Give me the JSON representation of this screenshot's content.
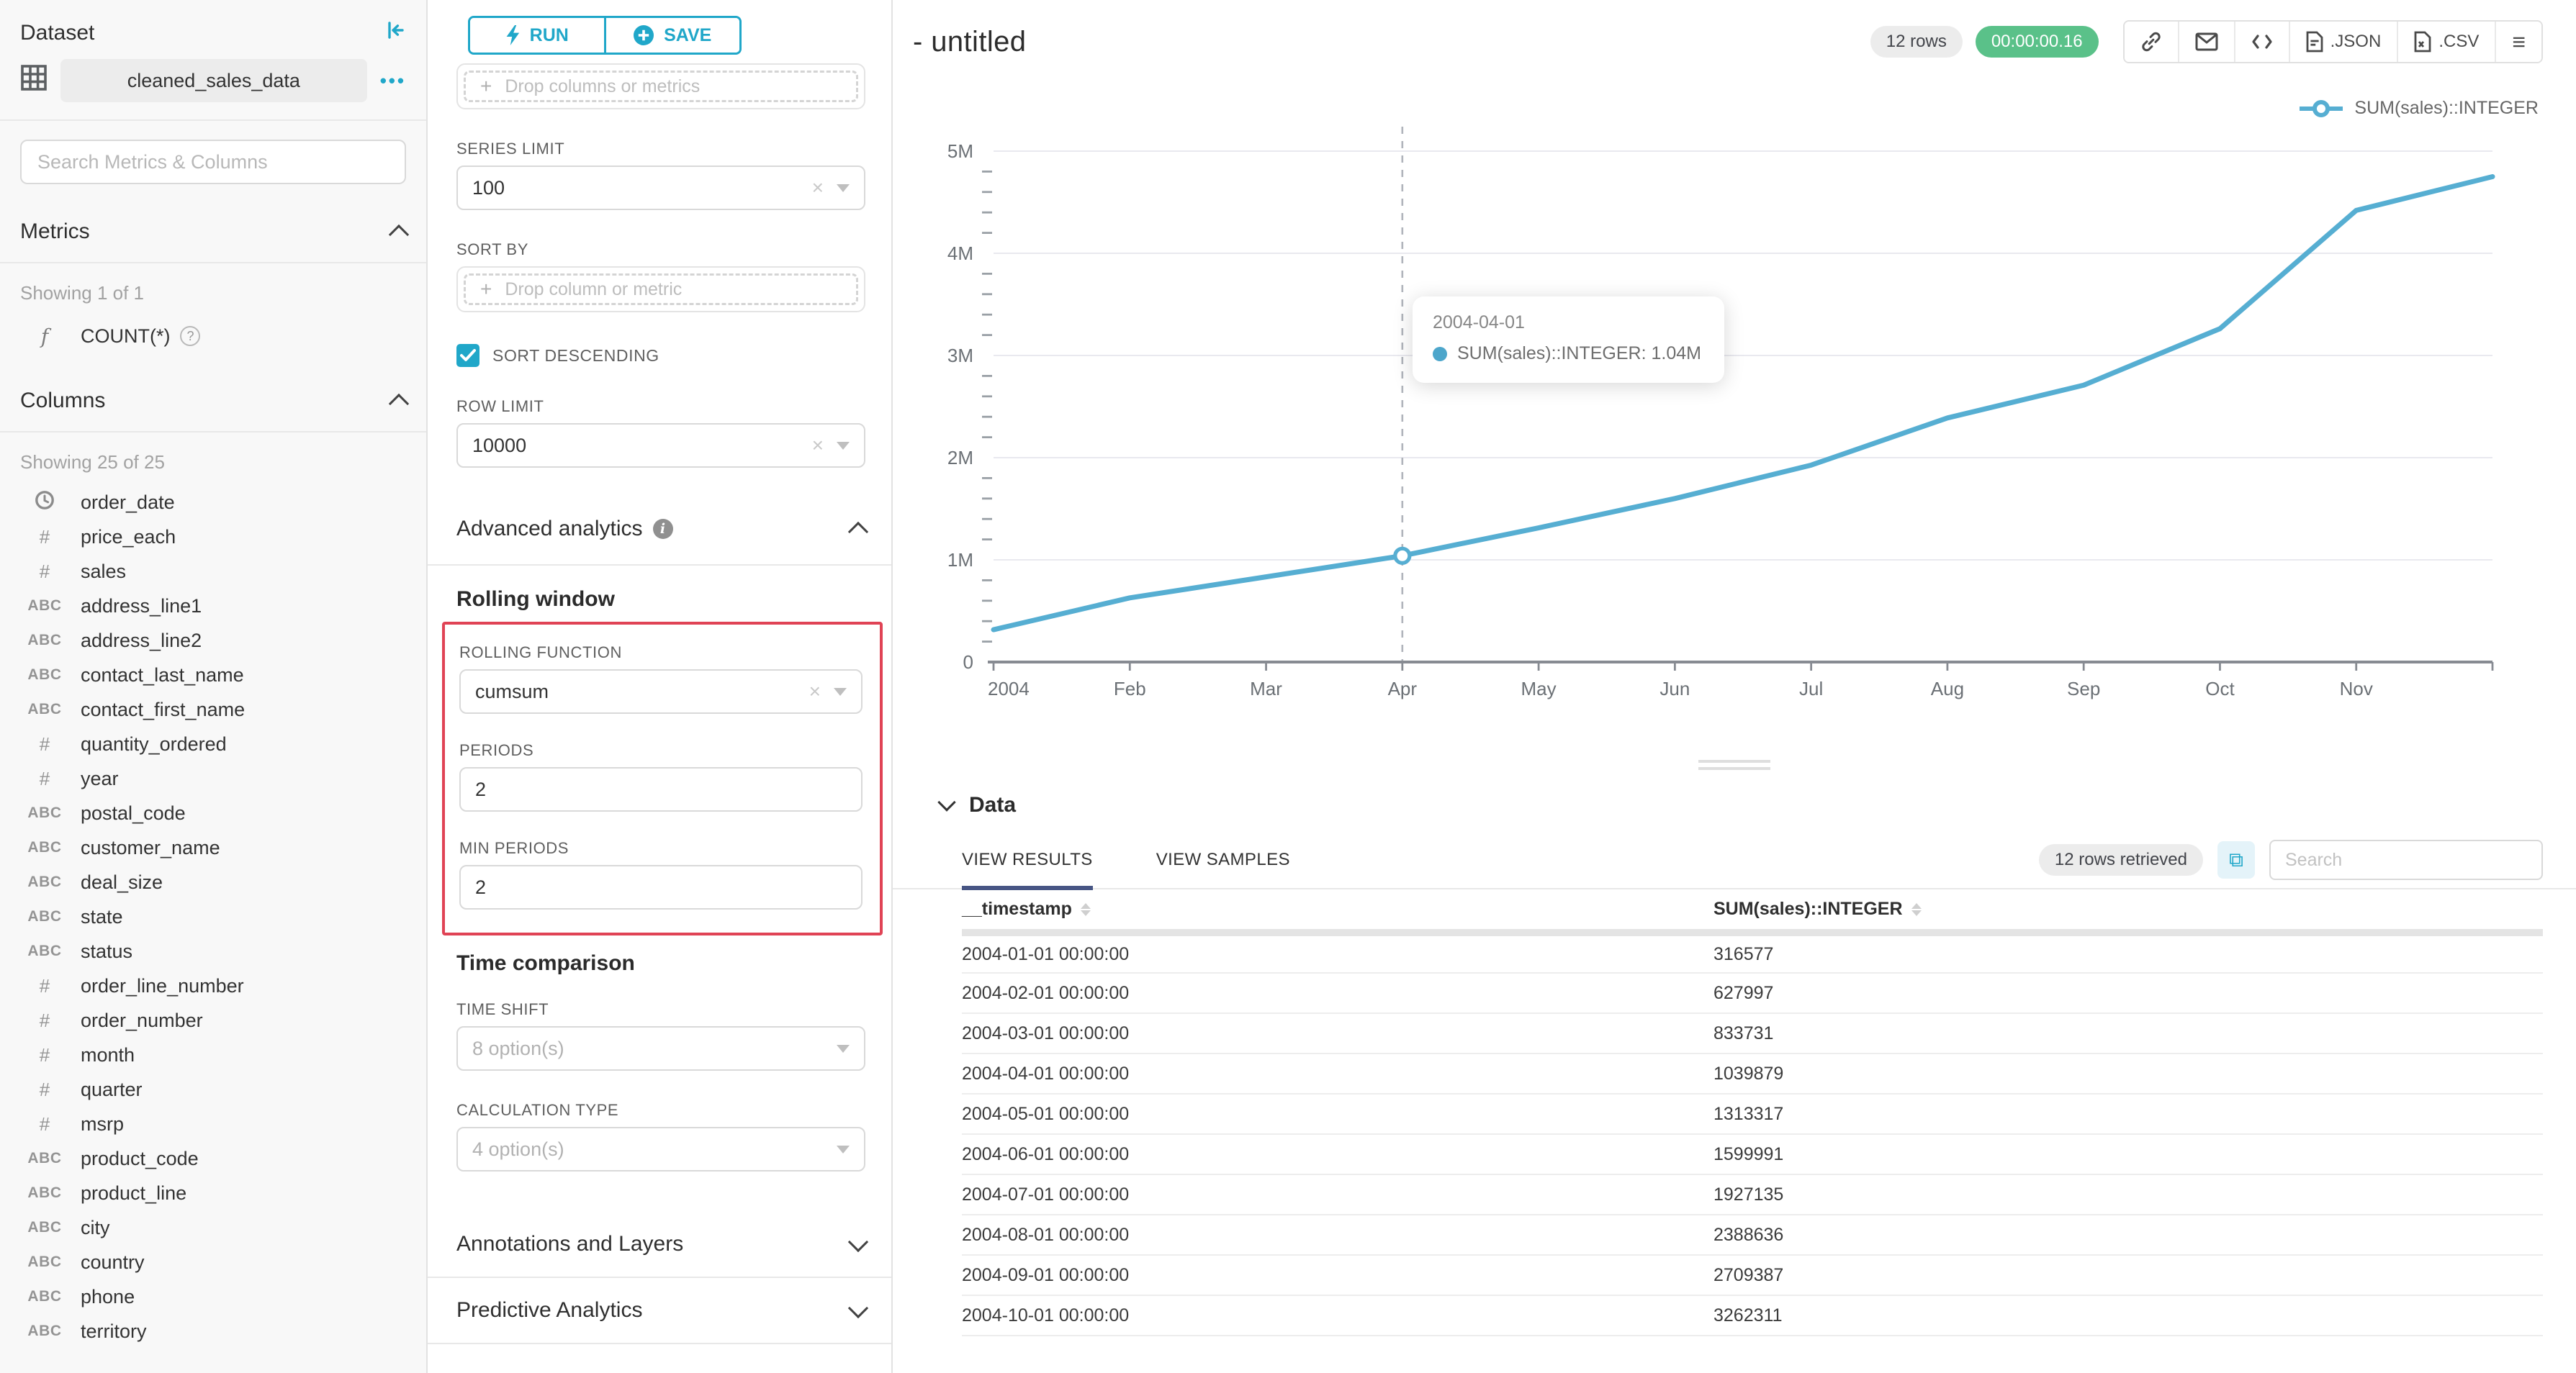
{
  "colors": {
    "primary": "#20a7c9",
    "line": "#56aed2",
    "tooltip_dot": "#4da6cb",
    "timer_badge_bg": "#5ac189",
    "alert_outline": "#e04355",
    "active_tab_underline": "#475584"
  },
  "dataset_panel": {
    "title": "Dataset",
    "dataset_name": "cleaned_sales_data",
    "search_placeholder": "Search Metrics & Columns",
    "metrics_section": {
      "title": "Metrics",
      "showing": "Showing 1 of 1",
      "items": [
        {
          "type": "function",
          "label": "COUNT(*)"
        }
      ]
    },
    "columns_section": {
      "title": "Columns",
      "showing": "Showing 25 of 25",
      "items": [
        {
          "type": "temporal",
          "label": "order_date"
        },
        {
          "type": "numeric",
          "label": "price_each"
        },
        {
          "type": "numeric",
          "label": "sales"
        },
        {
          "type": "text",
          "label": "address_line1"
        },
        {
          "type": "text",
          "label": "address_line2"
        },
        {
          "type": "text",
          "label": "contact_last_name"
        },
        {
          "type": "text",
          "label": "contact_first_name"
        },
        {
          "type": "numeric",
          "label": "quantity_ordered"
        },
        {
          "type": "numeric",
          "label": "year"
        },
        {
          "type": "text",
          "label": "postal_code"
        },
        {
          "type": "text",
          "label": "customer_name"
        },
        {
          "type": "text",
          "label": "deal_size"
        },
        {
          "type": "text",
          "label": "state"
        },
        {
          "type": "text",
          "label": "status"
        },
        {
          "type": "numeric",
          "label": "order_line_number"
        },
        {
          "type": "numeric",
          "label": "order_number"
        },
        {
          "type": "numeric",
          "label": "month"
        },
        {
          "type": "numeric",
          "label": "quarter"
        },
        {
          "type": "numeric",
          "label": "msrp"
        },
        {
          "type": "text",
          "label": "product_code"
        },
        {
          "type": "text",
          "label": "product_line"
        },
        {
          "type": "text",
          "label": "city"
        },
        {
          "type": "text",
          "label": "country"
        },
        {
          "type": "text",
          "label": "phone"
        },
        {
          "type": "text",
          "label": "territory"
        }
      ]
    }
  },
  "control_panel": {
    "run_label": "RUN",
    "save_label": "SAVE",
    "drop_zone_primary": "Drop columns or metrics",
    "series_limit": {
      "label": "SERIES LIMIT",
      "value": "100"
    },
    "sort_by": {
      "label": "SORT BY",
      "placeholder": "Drop column or metric"
    },
    "sort_descending": {
      "label": "SORT DESCENDING",
      "checked": true
    },
    "row_limit": {
      "label": "ROW LIMIT",
      "value": "10000"
    },
    "advanced_analytics_title": "Advanced analytics",
    "rolling_window": {
      "title": "Rolling window",
      "rolling_function": {
        "label": "ROLLING FUNCTION",
        "value": "cumsum"
      },
      "periods": {
        "label": "PERIODS",
        "value": "2"
      },
      "min_periods": {
        "label": "MIN PERIODS",
        "value": "2"
      }
    },
    "time_comparison": {
      "title": "Time comparison",
      "time_shift": {
        "label": "TIME SHIFT",
        "placeholder": "8 option(s)"
      },
      "calculation_type": {
        "label": "CALCULATION TYPE",
        "placeholder": "4 option(s)"
      }
    },
    "annotations_title": "Annotations and Layers",
    "predictive_title": "Predictive Analytics"
  },
  "chart_header": {
    "title": "- untitled",
    "rows_badge": "12 rows",
    "timer_badge": "00:00:00.16",
    "export_json_label": ".JSON",
    "export_csv_label": ".CSV"
  },
  "legend": {
    "label": "SUM(sales)::INTEGER"
  },
  "tooltip": {
    "date": "2004-04-01",
    "series_value_label": "SUM(sales)::INTEGER: 1.04M"
  },
  "chart_data": {
    "type": "line",
    "title": "",
    "xlabel": "",
    "ylabel": "",
    "ylim": [
      0,
      5000000
    ],
    "grid": true,
    "legend_position": "top-right",
    "x_tick_labels": [
      "2004",
      "Feb",
      "Mar",
      "Apr",
      "May",
      "Jun",
      "Jul",
      "Aug",
      "Sep",
      "Oct",
      "Nov"
    ],
    "y_tick_labels": [
      "0",
      "1M",
      "2M",
      "3M",
      "4M",
      "5M"
    ],
    "series": [
      {
        "name": "SUM(sales)::INTEGER",
        "x": [
          "2004-01-01",
          "2004-02-01",
          "2004-03-01",
          "2004-04-01",
          "2004-05-01",
          "2004-06-01",
          "2004-07-01",
          "2004-08-01",
          "2004-09-01",
          "2004-10-01",
          "2004-11-01",
          "2004-12-01"
        ],
        "values": [
          316577,
          627997,
          833731,
          1039879,
          1313317,
          1599991,
          1927135,
          2388636,
          2709387,
          3262311,
          4420000,
          4750000
        ]
      }
    ],
    "highlighted_point": {
      "x": "2004-04-01",
      "value": 1039879,
      "index": 3
    }
  },
  "data_panel": {
    "title": "Data",
    "tabs": {
      "results": "VIEW RESULTS",
      "samples": "VIEW SAMPLES"
    },
    "rows_retrieved": "12 rows retrieved",
    "search_placeholder": "Search",
    "table": {
      "columns": [
        "__timestamp",
        "SUM(sales)::INTEGER"
      ],
      "rows": [
        [
          "2004-01-01 00:00:00",
          "316577"
        ],
        [
          "2004-02-01 00:00:00",
          "627997"
        ],
        [
          "2004-03-01 00:00:00",
          "833731"
        ],
        [
          "2004-04-01 00:00:00",
          "1039879"
        ],
        [
          "2004-05-01 00:00:00",
          "1313317"
        ],
        [
          "2004-06-01 00:00:00",
          "1599991"
        ],
        [
          "2004-07-01 00:00:00",
          "1927135"
        ],
        [
          "2004-08-01 00:00:00",
          "2388636"
        ],
        [
          "2004-09-01 00:00:00",
          "2709387"
        ],
        [
          "2004-10-01 00:00:00",
          "3262311"
        ]
      ]
    }
  }
}
